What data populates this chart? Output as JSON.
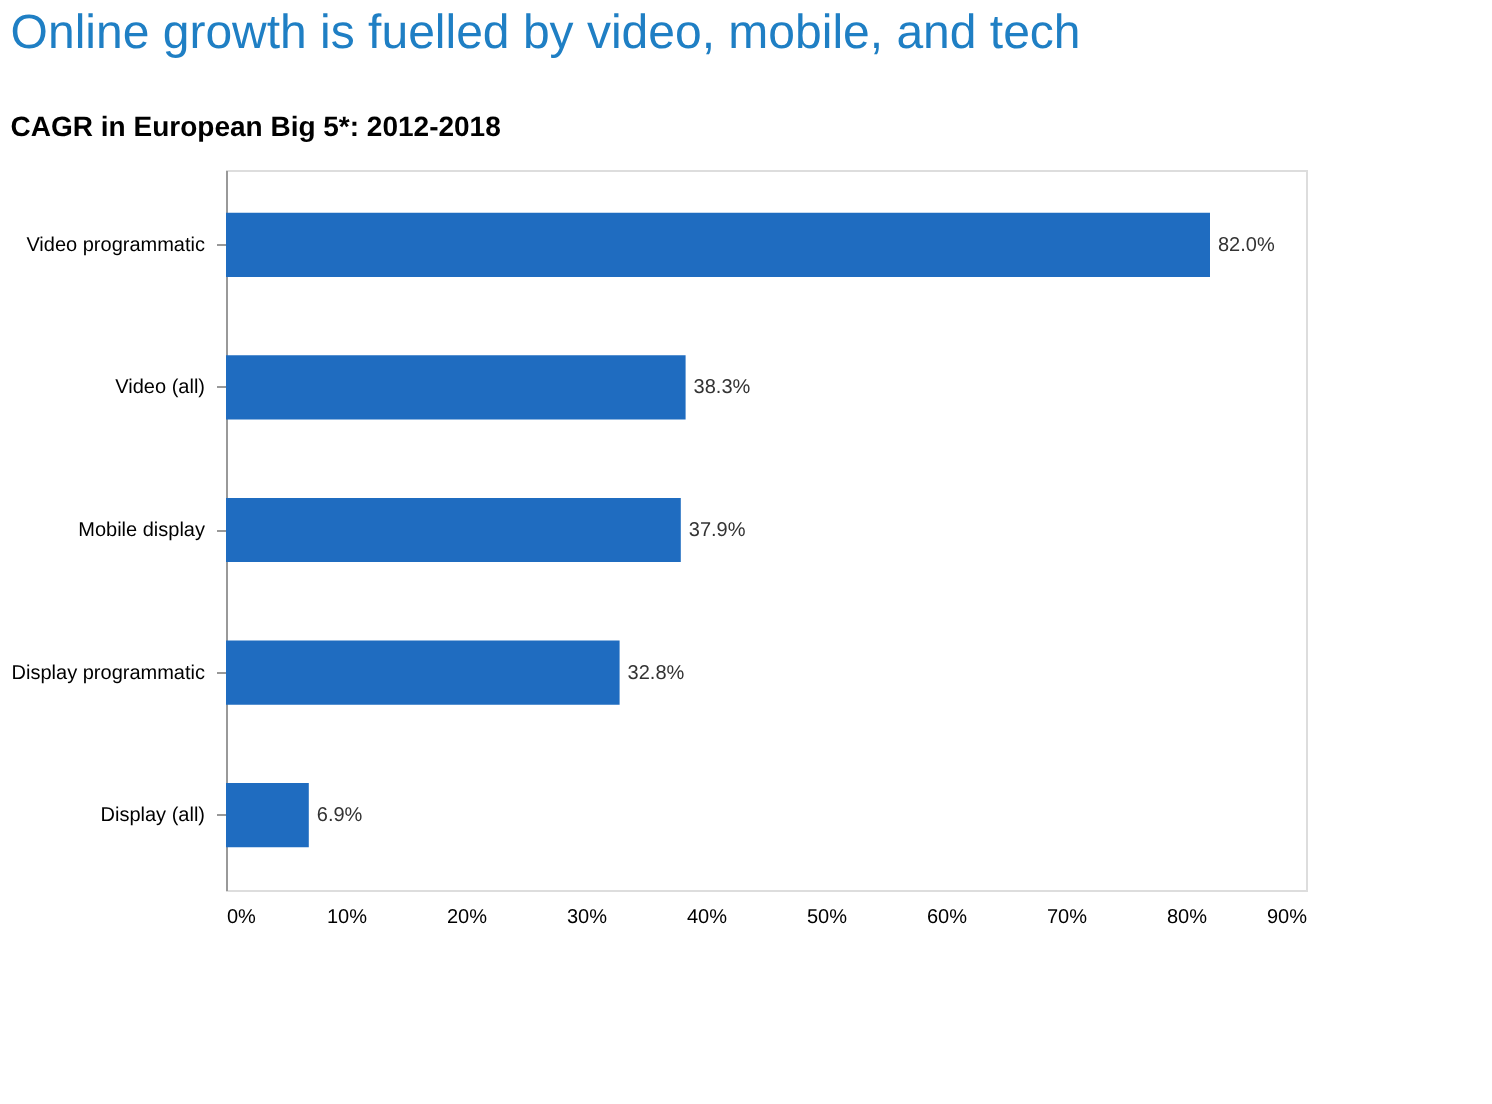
{
  "chart_data": {
    "type": "bar",
    "orientation": "horizontal",
    "title": "Online growth is fuelled by video, mobile, and tech",
    "subtitle": "CAGR in European Big 5*: 2012-2018",
    "categories": [
      "Video programmatic",
      "Video (all)",
      "Mobile display",
      "Display programmatic",
      "Display (all)"
    ],
    "values": [
      82.0,
      38.3,
      37.9,
      32.8,
      6.9
    ],
    "value_labels": [
      "82.0%",
      "38.3%",
      "37.9%",
      "32.8%",
      "6.9%"
    ],
    "color": "#1f6cc0",
    "xlim": [
      0,
      90
    ],
    "xticks": [
      {
        "value": 0,
        "label": "0%"
      },
      {
        "value": 10,
        "label": "10%"
      },
      {
        "value": 20,
        "label": "20%"
      },
      {
        "value": 30,
        "label": "30%"
      },
      {
        "value": 40,
        "label": "40%"
      },
      {
        "value": 50,
        "label": "50%"
      },
      {
        "value": 60,
        "label": "60%"
      },
      {
        "value": 70,
        "label": "70%"
      },
      {
        "value": 80,
        "label": "80%"
      },
      {
        "value": 90,
        "label": "90%"
      }
    ],
    "grid": false,
    "legend": false
  }
}
